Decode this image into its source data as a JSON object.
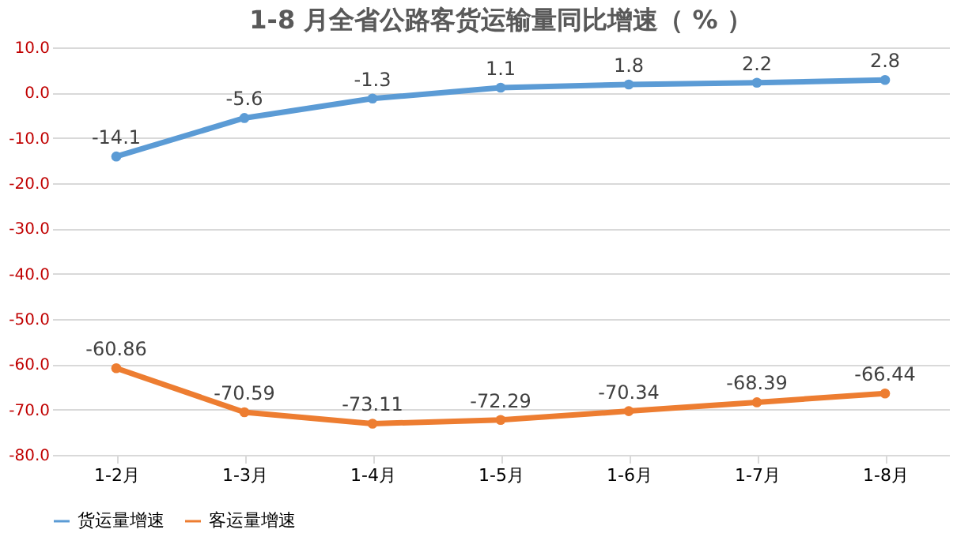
{
  "chart_data": {
    "type": "line",
    "title": "1-8 月全省公路客货运输量同比增速（ % ）",
    "categories": [
      "1-2月",
      "1-3月",
      "1-4月",
      "1-5月",
      "1-6月",
      "1-7月",
      "1-8月"
    ],
    "series": [
      {
        "name": "货运量增速",
        "color": "#5b9bd5",
        "values": [
          -14.1,
          -5.6,
          -1.3,
          1.1,
          1.8,
          2.2,
          2.8
        ]
      },
      {
        "name": "客运量增速",
        "color": "#ed7d31",
        "values": [
          -60.86,
          -70.59,
          -73.11,
          -72.29,
          -70.34,
          -68.39,
          -66.44
        ]
      }
    ],
    "ylim": [
      -80,
      10
    ],
    "yticks": [
      {
        "value": 10,
        "label": "10.0"
      },
      {
        "value": 0,
        "label": "0.0"
      },
      {
        "value": -10,
        "label": "-10.0"
      },
      {
        "value": -20,
        "label": "-20.0"
      },
      {
        "value": -30,
        "label": "-30.0"
      },
      {
        "value": -40,
        "label": "-40.0"
      },
      {
        "value": -50,
        "label": "-50.0"
      },
      {
        "value": -60,
        "label": "-60.0"
      },
      {
        "value": -70,
        "label": "-70.0"
      },
      {
        "value": -80,
        "label": "-80.0"
      }
    ],
    "grid": "y",
    "legend": "bottom",
    "marker": "circle",
    "line_style": "solid",
    "data_labels": true
  }
}
